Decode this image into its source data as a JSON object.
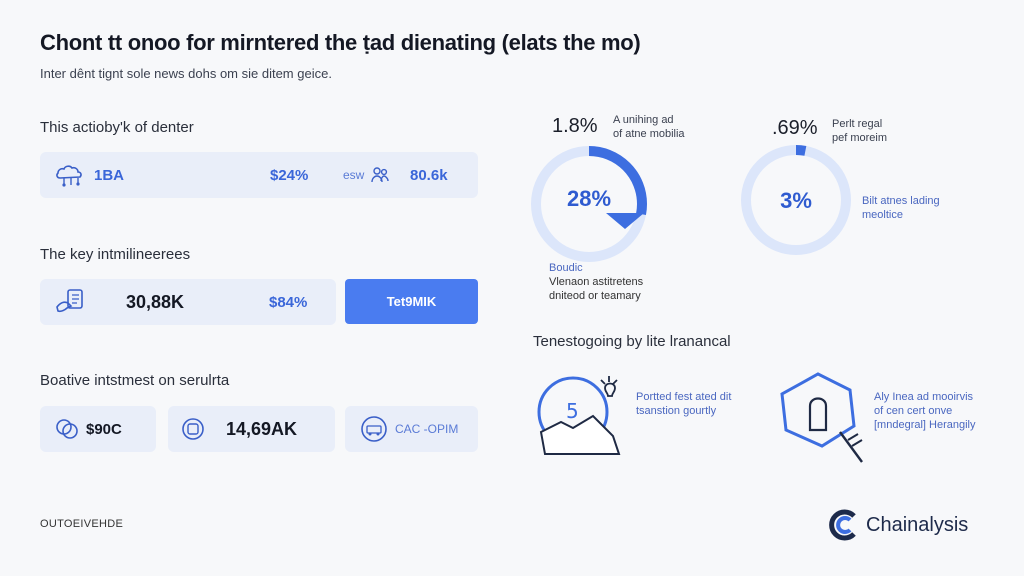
{
  "header": {
    "title": "Chont tt onoo for mirntered the ṭad dienating (elats the mo)",
    "subtitle": "Inter dênt tiɡnt sole news dohs om sie ditem geice."
  },
  "sections": {
    "s1_label": "This actioby'k of denter",
    "s2_label": "The key intmilineerees",
    "s3_label": "Boative intstmest on serulrta"
  },
  "row1": {
    "label": "1BA",
    "value1": "$24%",
    "mini": "esw",
    "value2": "80.6k"
  },
  "row2": {
    "value1": "30,88K",
    "value2": "$84%",
    "cta": "Tet9MIK"
  },
  "row3": {
    "card1": "$90C",
    "card2": "14,69AK",
    "card3": "CAC -OPIM"
  },
  "stats": {
    "left_big": "1.8%",
    "left_desc1": "A unihing ad",
    "left_desc2": "of atne mobilia",
    "left_ring": "28%",
    "right_big": ".69%",
    "right_desc1": "Perlt regal",
    "right_desc2": "pef moreim",
    "right_ring": "3%",
    "right_note1": "Bilt atnes lading",
    "right_note2": "meoltice"
  },
  "note": {
    "title": "Boudic",
    "line1": "Vlenaon astitretens",
    "line2": "dniteod or teamary"
  },
  "section2": {
    "label": "Tenestogoing by lite lranancal",
    "item1_line1": "Portted fest ated dit",
    "item1_line2": "tsanstion gourtly",
    "item2_line1": "Aly Inea ad mooirvis",
    "item2_line2": "of cen cert onve",
    "item2_line3": "[mndegral] Herangily"
  },
  "footer": {
    "left": "OUTOEIVEHDE",
    "logo": "Chainalysis"
  },
  "progress": {
    "left_ring": 0.28,
    "right_ring": 0.03
  },
  "colors": {
    "accent": "#4a7cf0",
    "ring": "#3d6ee0",
    "ring_track": "#dce6fa"
  }
}
